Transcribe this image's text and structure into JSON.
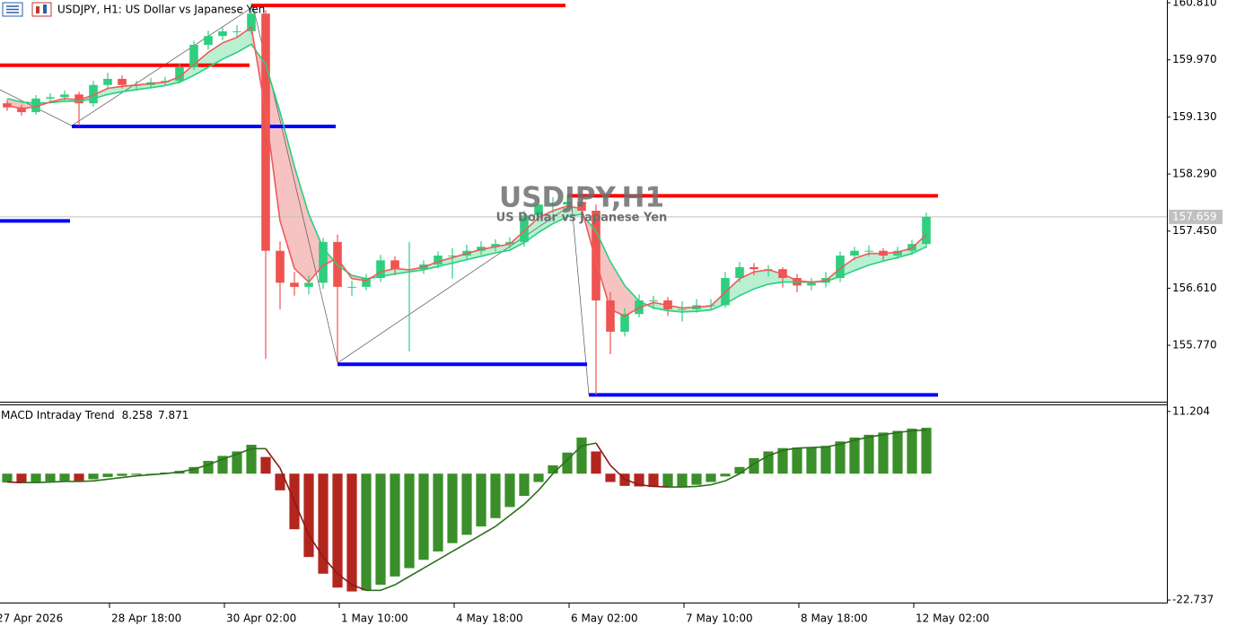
{
  "chart_data": [
    {
      "type": "candlestick",
      "title": "USDJPY, H1:  US Dollar vs Japanese Yen",
      "watermark": "USDJPY,H1",
      "watermark_subtitle": "US Dollar vs Japanese Yen",
      "xlim": [
        0,
        325
      ],
      "xticks": [
        {
          "value": -1.5,
          "label": "27 Apr 2026"
        },
        {
          "value": 30.5,
          "label": "28 Apr 18:00"
        },
        {
          "value": 62.5,
          "label": "30 Apr 02:00"
        },
        {
          "value": 94.5,
          "label": "1 May 10:00"
        },
        {
          "value": 126.5,
          "label": "4 May 18:00"
        },
        {
          "value": 158.5,
          "label": "6 May 02:00"
        },
        {
          "value": 190.5,
          "label": "7 May 10:00"
        },
        {
          "value": 222.5,
          "label": "8 May 18:00"
        },
        {
          "value": 254.5,
          "label": "12 May 02:00"
        }
      ],
      "ylim": [
        154.94,
        160.85
      ],
      "yticks": [
        {
          "value": 160.81,
          "label": "160.810"
        },
        {
          "value": 159.97,
          "label": "159.970"
        },
        {
          "value": 159.13,
          "label": "159.130"
        },
        {
          "value": 158.29,
          "label": "158.290"
        },
        {
          "value": 157.45,
          "label": "157.450"
        },
        {
          "value": 156.61,
          "label": "156.610"
        },
        {
          "value": 155.77,
          "label": "155.770"
        }
      ],
      "up_color": "#2fcf7f",
      "down_color": "#ef5350",
      "x": [
        2,
        6,
        10,
        14,
        18,
        22,
        26,
        30,
        34,
        38,
        42,
        46,
        50,
        54,
        58,
        62,
        66,
        70,
        74,
        78,
        82,
        86,
        90,
        94,
        98,
        102,
        106,
        110,
        114,
        118,
        122,
        126,
        130,
        134,
        138,
        142,
        146,
        150,
        154,
        158,
        162,
        166,
        170,
        174,
        178,
        182,
        186,
        190,
        194,
        198,
        202,
        206,
        210,
        214,
        218,
        222,
        226,
        230,
        234,
        238,
        242,
        246,
        250,
        254,
        258
      ],
      "candles": [
        [
          159.33,
          159.38,
          159.22,
          159.27
        ],
        [
          159.27,
          159.31,
          159.15,
          159.2
        ],
        [
          159.2,
          159.45,
          159.16,
          159.4
        ],
        [
          159.4,
          159.48,
          159.35,
          159.42
        ],
        [
          159.42,
          159.52,
          159.36,
          159.46
        ],
        [
          159.46,
          159.5,
          159.0,
          159.33
        ],
        [
          159.33,
          159.66,
          159.28,
          159.6
        ],
        [
          159.6,
          159.78,
          159.55,
          159.69
        ],
        [
          159.69,
          159.74,
          159.55,
          159.6
        ],
        [
          159.6,
          159.66,
          159.54,
          159.6
        ],
        [
          159.6,
          159.7,
          159.56,
          159.64
        ],
        [
          159.64,
          159.72,
          159.59,
          159.66
        ],
        [
          159.66,
          159.92,
          159.62,
          159.86
        ],
        [
          159.86,
          160.25,
          159.82,
          160.19
        ],
        [
          160.19,
          160.4,
          160.12,
          160.32
        ],
        [
          160.32,
          160.45,
          160.26,
          160.39
        ],
        [
          160.39,
          160.48,
          160.3,
          160.39
        ],
        [
          160.39,
          160.8,
          160.35,
          160.65
        ],
        [
          160.65,
          160.7,
          155.57,
          157.16
        ],
        [
          157.16,
          157.3,
          156.3,
          156.69
        ],
        [
          156.69,
          156.85,
          156.5,
          156.63
        ],
        [
          156.63,
          156.8,
          156.52,
          156.69
        ],
        [
          156.69,
          157.35,
          156.6,
          157.29
        ],
        [
          157.29,
          157.4,
          155.51,
          156.63
        ],
        [
          156.63,
          156.72,
          156.5,
          156.63
        ],
        [
          156.63,
          156.82,
          156.58,
          156.76
        ],
        [
          156.76,
          157.1,
          156.7,
          157.02
        ],
        [
          157.02,
          157.08,
          156.8,
          156.89
        ],
        [
          156.89,
          157.29,
          155.68,
          156.89
        ],
        [
          156.89,
          157.02,
          156.82,
          156.96
        ],
        [
          156.96,
          157.15,
          156.9,
          157.09
        ],
        [
          157.09,
          157.2,
          156.75,
          157.09
        ],
        [
          157.09,
          157.25,
          157.02,
          157.16
        ],
        [
          157.16,
          157.3,
          157.1,
          157.22
        ],
        [
          157.22,
          157.33,
          157.15,
          157.26
        ],
        [
          157.26,
          157.36,
          157.2,
          157.29
        ],
        [
          157.29,
          157.75,
          157.22,
          157.68
        ],
        [
          157.68,
          157.92,
          157.6,
          157.84
        ],
        [
          157.84,
          157.95,
          157.72,
          157.84
        ],
        [
          157.84,
          157.98,
          157.78,
          157.88
        ],
        [
          157.88,
          157.95,
          157.68,
          157.75
        ],
        [
          157.75,
          157.84,
          155.04,
          156.43
        ],
        [
          156.43,
          156.55,
          155.64,
          155.97
        ],
        [
          155.97,
          156.32,
          155.9,
          156.23
        ],
        [
          156.23,
          156.52,
          156.18,
          156.43
        ],
        [
          156.43,
          156.5,
          156.3,
          156.43
        ],
        [
          156.43,
          156.48,
          156.2,
          156.3
        ],
        [
          156.3,
          156.42,
          156.12,
          156.3
        ],
        [
          156.3,
          156.45,
          156.25,
          156.36
        ],
        [
          156.36,
          156.45,
          156.28,
          156.36
        ],
        [
          156.36,
          156.85,
          156.32,
          156.76
        ],
        [
          156.76,
          157.0,
          156.7,
          156.92
        ],
        [
          156.92,
          156.98,
          156.8,
          156.89
        ],
        [
          156.89,
          156.95,
          156.78,
          156.89
        ],
        [
          156.89,
          156.92,
          156.62,
          156.76
        ],
        [
          156.76,
          156.82,
          156.55,
          156.65
        ],
        [
          156.65,
          156.76,
          156.58,
          156.69
        ],
        [
          156.69,
          156.85,
          156.62,
          156.76
        ],
        [
          156.76,
          157.15,
          156.7,
          157.09
        ],
        [
          157.09,
          157.22,
          157.02,
          157.16
        ],
        [
          157.16,
          157.24,
          157.08,
          157.16
        ],
        [
          157.16,
          157.2,
          157.02,
          157.09
        ],
        [
          157.09,
          157.22,
          157.04,
          157.16
        ],
        [
          157.16,
          157.32,
          157.1,
          157.26
        ],
        [
          157.26,
          157.72,
          157.2,
          157.66
        ]
      ],
      "ma_fast": {
        "color": "#f05a5a",
        "values": [
          159.3,
          159.25,
          159.28,
          159.35,
          159.4,
          159.38,
          159.45,
          159.55,
          159.58,
          159.6,
          159.62,
          159.64,
          159.72,
          159.9,
          160.08,
          160.22,
          160.3,
          160.45,
          159.2,
          157.6,
          156.9,
          156.7,
          156.95,
          157.05,
          156.75,
          156.72,
          156.85,
          156.9,
          156.88,
          156.92,
          157.0,
          157.06,
          157.12,
          157.18,
          157.22,
          157.26,
          157.45,
          157.65,
          157.75,
          157.82,
          157.78,
          157.0,
          156.3,
          156.2,
          156.32,
          156.4,
          156.36,
          156.32,
          156.33,
          156.35,
          156.55,
          156.75,
          156.85,
          156.88,
          156.82,
          156.72,
          156.7,
          156.72,
          156.9,
          157.05,
          157.12,
          157.12,
          157.14,
          157.2,
          157.4
        ]
      },
      "ma_slow": {
        "color": "#27cf7e",
        "values": [
          159.4,
          159.35,
          159.33,
          159.34,
          159.36,
          159.36,
          159.4,
          159.46,
          159.5,
          159.53,
          159.56,
          159.59,
          159.64,
          159.74,
          159.86,
          159.98,
          160.08,
          160.2,
          159.9,
          159.2,
          158.4,
          157.7,
          157.2,
          156.95,
          156.8,
          156.75,
          156.78,
          156.82,
          156.85,
          156.88,
          156.93,
          156.98,
          157.03,
          157.08,
          157.13,
          157.17,
          157.28,
          157.43,
          157.56,
          157.66,
          157.7,
          157.45,
          157.0,
          156.65,
          156.42,
          156.32,
          156.28,
          156.26,
          156.27,
          156.29,
          156.38,
          156.5,
          156.6,
          156.67,
          156.7,
          156.7,
          156.7,
          156.71,
          156.78,
          156.87,
          156.95,
          157.01,
          157.06,
          157.12,
          157.22
        ]
      },
      "cloud_up_color": "#b9f0d2",
      "cloud_down_color": "#f7c2c2",
      "zigzag": {
        "color": "#555555",
        "x": [
          0,
          20,
          70.5,
          94,
          159.25,
          164
        ],
        "y": [
          159.53,
          159.0,
          160.75,
          155.51,
          157.84,
          155.04
        ]
      },
      "levels": [
        {
          "start": 70,
          "end": 157.5,
          "price": 160.77,
          "color": "#ff0000"
        },
        {
          "start": 0,
          "end": 69.5,
          "price": 159.89,
          "color": "#ff0000"
        },
        {
          "start": 158,
          "end": 261.25,
          "price": 157.97,
          "color": "#ff0000"
        },
        {
          "start": 20,
          "end": 93.5,
          "price": 158.99,
          "color": "#0000ff"
        },
        {
          "start": 0,
          "end": 19.5,
          "price": 157.6,
          "color": "#0000ff"
        },
        {
          "start": 94,
          "end": 163.5,
          "price": 155.49,
          "color": "#0000ff"
        },
        {
          "start": 164,
          "end": 261.25,
          "price": 155.04,
          "color": "#0000ff"
        }
      ],
      "last_price": 157.659,
      "last_price_color": "#c0c0c0"
    },
    {
      "type": "bar",
      "title": "MACD Intraday Trend",
      "main_value": 8.258,
      "signal_value": 7.871,
      "ylim": [
        -23.2,
        12.3
      ],
      "yticks": [
        11.204,
        -22.737
      ],
      "rising_color": "#3a8f2a",
      "falling_color": "#b3261e",
      "values": [
        -1.6,
        -1.7,
        -1.5,
        -1.4,
        -1.3,
        -1.4,
        -1.0,
        -0.6,
        -0.4,
        -0.2,
        0,
        0.2,
        0.5,
        1.2,
        2.3,
        3.2,
        4.0,
        5.2,
        3.0,
        -3,
        -10,
        -15,
        -18,
        -20.5,
        -21.2,
        -21,
        -20,
        -18.5,
        -17,
        -15.5,
        -14,
        -12.5,
        -11,
        -9.5,
        -8,
        -6,
        -4,
        -1.5,
        1.5,
        3.8,
        6.5,
        4.0,
        -1.5,
        -2.2,
        -2.3,
        -2.4,
        -2.4,
        -2.3,
        -2.0,
        -1.5,
        -0.5,
        1.2,
        2.8,
        4.0,
        4.6,
        4.7,
        4.7,
        5.0,
        5.8,
        6.5,
        7.0,
        7.4,
        7.7,
        8.1,
        8.258
      ],
      "signal": {
        "rising_color": "#2d6e1e",
        "falling_color": "#8b1a1a",
        "values": [
          -1.5,
          -1.6,
          -1.6,
          -1.5,
          -1.4,
          -1.4,
          -1.3,
          -1.0,
          -0.7,
          -0.4,
          -0.2,
          0,
          0.3,
          0.8,
          1.6,
          2.6,
          3.5,
          4.5,
          4.5,
          1.0,
          -5,
          -11,
          -15,
          -18,
          -20,
          -21,
          -21,
          -20,
          -18.5,
          -17,
          -15.5,
          -14,
          -12.5,
          -11,
          -9.5,
          -7.5,
          -5.5,
          -3,
          0,
          2.5,
          5,
          5.5,
          1.5,
          -1,
          -2,
          -2.3,
          -2.4,
          -2.4,
          -2.3,
          -2.0,
          -1.3,
          0,
          1.8,
          3.2,
          4.2,
          4.6,
          4.7,
          4.8,
          5.3,
          6.0,
          6.6,
          7.0,
          7.4,
          7.7,
          7.871
        ]
      }
    }
  ]
}
